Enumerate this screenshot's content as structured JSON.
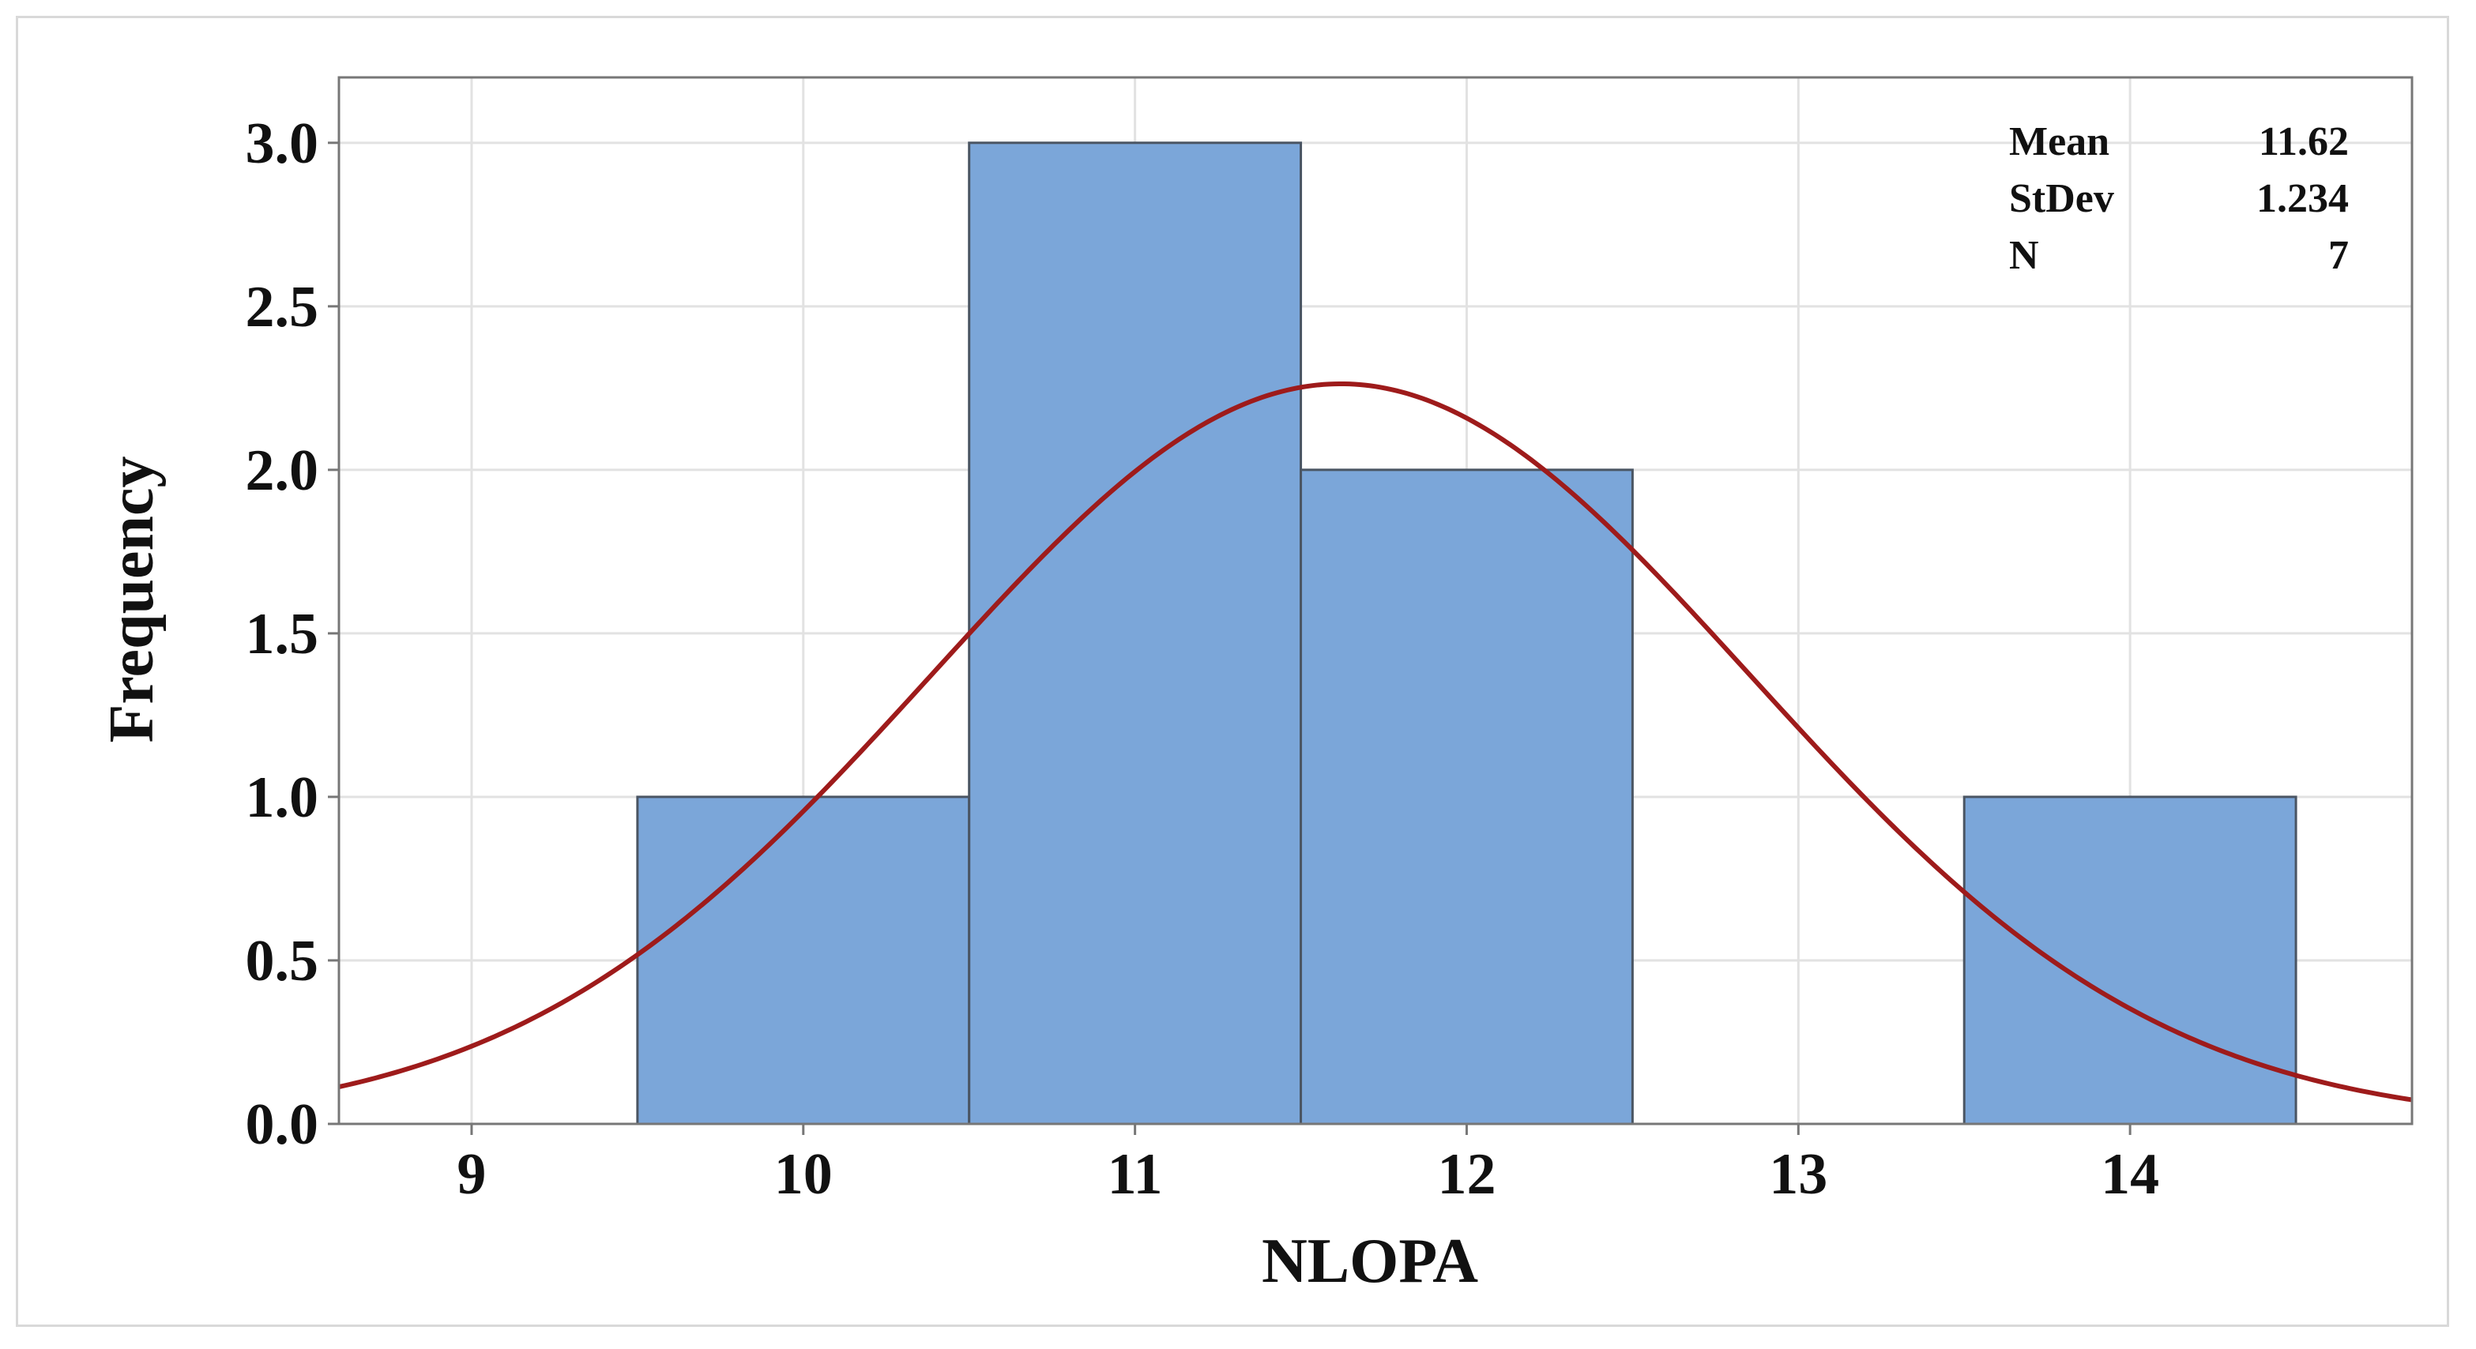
{
  "chart_data": {
    "type": "bar",
    "subtype": "histogram-with-normal-fit",
    "xlabel": "NLOPA",
    "ylabel": "Frequency",
    "xlim": [
      8.6,
      14.85
    ],
    "ylim": [
      0,
      3.2
    ],
    "x_ticks": [
      9,
      10,
      11,
      12,
      13,
      14
    ],
    "y_ticks": [
      "0.0",
      "0.5",
      "1.0",
      "1.5",
      "2.0",
      "2.5",
      "3.0"
    ],
    "bins": [
      {
        "center": 10,
        "start": 9.5,
        "end": 10.5,
        "count": 1
      },
      {
        "center": 11,
        "start": 10.5,
        "end": 11.5,
        "count": 3
      },
      {
        "center": 12,
        "start": 11.5,
        "end": 12.5,
        "count": 2
      },
      {
        "center": 13,
        "start": 12.5,
        "end": 13.5,
        "count": 0
      },
      {
        "center": 14,
        "start": 13.5,
        "end": 14.5,
        "count": 1
      }
    ],
    "fit": {
      "type": "normal",
      "mean": 11.62,
      "stdev": 1.234,
      "n": 7,
      "bin_width": 1
    },
    "stats": [
      {
        "label": "Mean",
        "value": "11.62"
      },
      {
        "label": "StDev",
        "value": "1.234"
      },
      {
        "label": "N",
        "value": "7"
      }
    ],
    "grid": true,
    "legend_position": "top-right",
    "colors": {
      "bar_fill": "#7ba6d9",
      "bar_edge": "#4a5563",
      "fit_line": "#9e1b1b",
      "grid": "#e2e2e2",
      "axis": "#777777"
    }
  }
}
